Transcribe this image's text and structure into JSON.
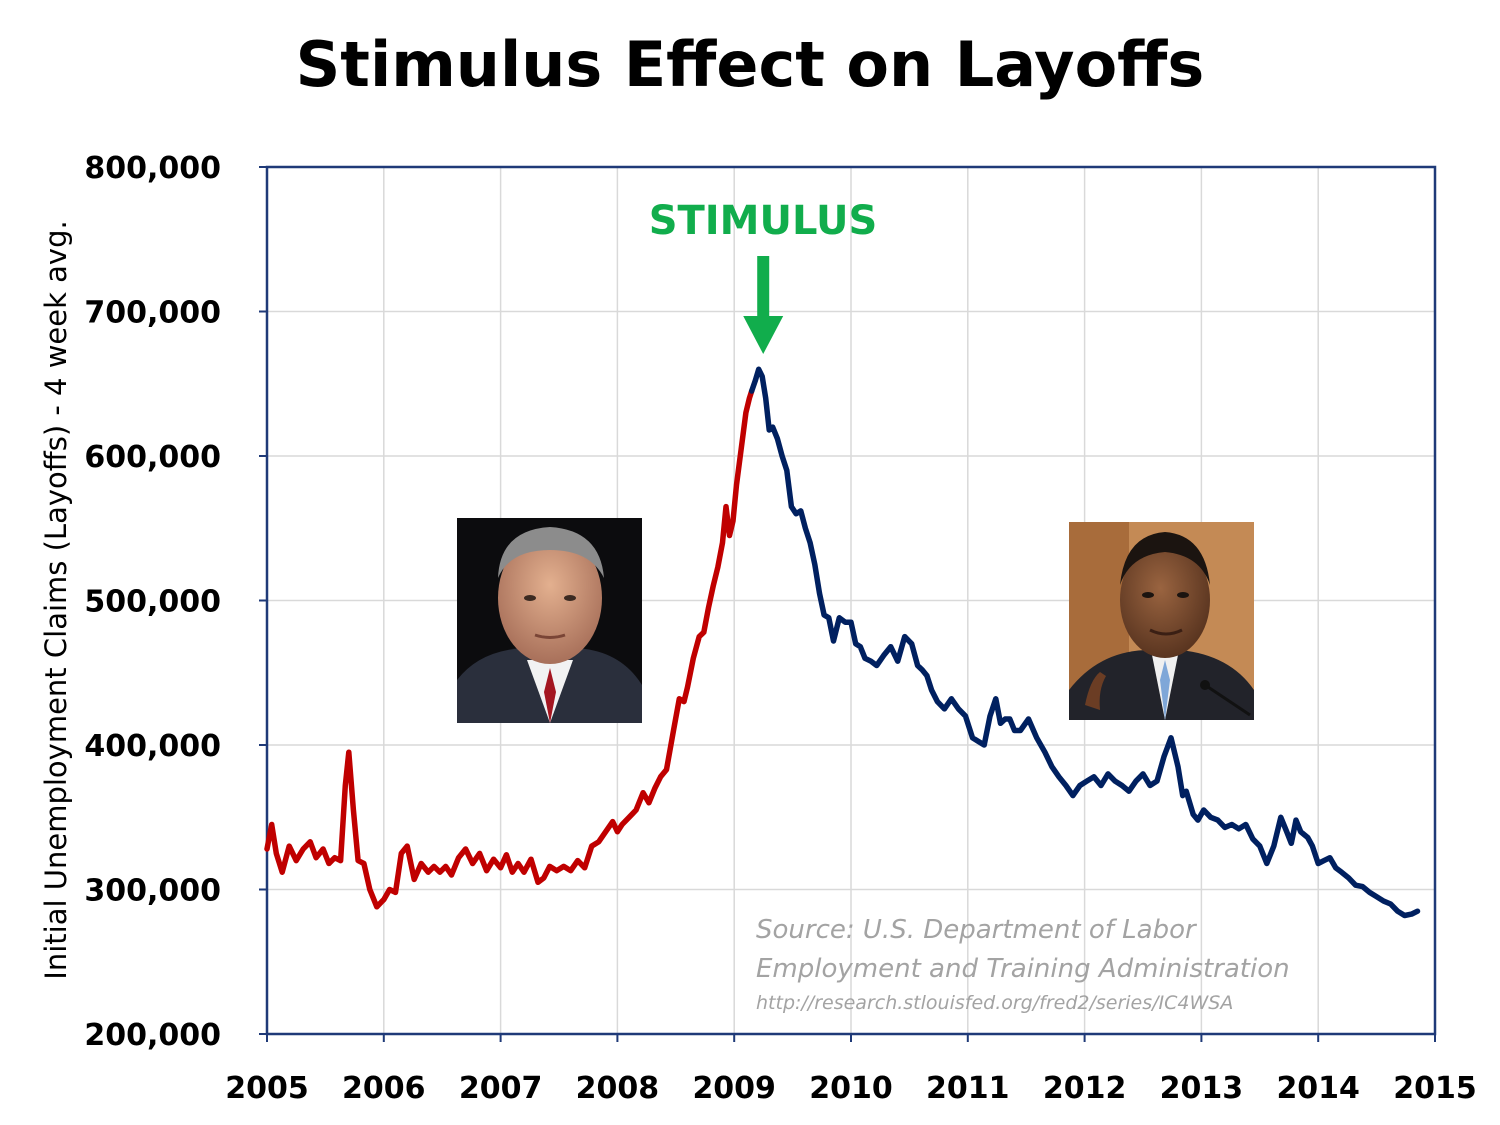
{
  "title": "Stimulus Effect on Layoffs",
  "colors": {
    "before": "#c00000",
    "after": "#002060",
    "stimulus": "#11ad4c",
    "frame": "#1f3a78",
    "grid": "#d9d9d9",
    "source": "#a3a3a3"
  },
  "stimulus_label": "STIMULUS",
  "stimulus_x": 2009.12,
  "source": {
    "line1": "Source: U.S. Department of Labor",
    "line2": "Employment and Training Administration",
    "line3": "http://research.stlouisfed.org/fred2/series/IC4WSA"
  },
  "photos": {
    "left": "portrait-bush",
    "right": "portrait-obama"
  },
  "chart_data": {
    "type": "line",
    "title": "Stimulus Effect on Layoffs",
    "xlabel": "",
    "ylabel": "Initial Unemployment Claims (Layoffs) - 4 week avg.",
    "xlim": [
      2005,
      2015
    ],
    "ylim": [
      200000,
      800000
    ],
    "x_ticks": [
      "2005",
      "2006",
      "2007",
      "2008",
      "2009",
      "2010",
      "2011",
      "2012",
      "2013",
      "2014",
      "2015"
    ],
    "y_ticks": [
      "200,000",
      "300,000",
      "400,000",
      "500,000",
      "600,000",
      "700,000",
      "800,000"
    ],
    "grid": true,
    "series": [
      {
        "key": "before",
        "x": [
          2005.0,
          2005.04,
          2005.08,
          2005.13,
          2005.19,
          2005.25,
          2005.31,
          2005.37,
          2005.42,
          2005.48,
          2005.53,
          2005.58,
          2005.63,
          2005.67,
          2005.7,
          2005.74,
          2005.78,
          2005.83,
          2005.88,
          2005.94,
          2006.0,
          2006.05,
          2006.1,
          2006.15,
          2006.2,
          2006.26,
          2006.32,
          2006.38,
          2006.43,
          2006.48,
          2006.53,
          2006.58,
          2006.64,
          2006.7,
          2006.76,
          2006.82,
          2006.88,
          2006.94,
          2007.0,
          2007.05,
          2007.1,
          2007.15,
          2007.2,
          2007.26,
          2007.32,
          2007.37,
          2007.42,
          2007.48,
          2007.54,
          2007.6,
          2007.66,
          2007.72,
          2007.78,
          2007.84,
          2007.9,
          2007.96,
          2008.0,
          2008.04,
          2008.1,
          2008.16,
          2008.22,
          2008.27,
          2008.32,
          2008.37,
          2008.42,
          2008.48,
          2008.53,
          2008.57,
          2008.6,
          2008.65,
          2008.7,
          2008.74,
          2008.78,
          2008.82,
          2008.86,
          2008.9,
          2008.93,
          2008.96,
          2008.99,
          2009.02,
          2009.06,
          2009.1,
          2009.13,
          2009.15
        ],
        "values": [
          328000,
          345000,
          325000,
          312000,
          330000,
          320000,
          328000,
          333000,
          322000,
          328000,
          318000,
          322000,
          320000,
          372000,
          395000,
          355000,
          320000,
          318000,
          300000,
          288000,
          293000,
          300000,
          298000,
          325000,
          330000,
          307000,
          318000,
          312000,
          316000,
          312000,
          316000,
          310000,
          322000,
          328000,
          318000,
          325000,
          313000,
          321000,
          315000,
          324000,
          312000,
          318000,
          312000,
          321000,
          305000,
          308000,
          316000,
          313000,
          316000,
          313000,
          320000,
          315000,
          330000,
          333000,
          340000,
          347000,
          340000,
          345000,
          350000,
          355000,
          367000,
          360000,
          370000,
          378000,
          383000,
          410000,
          432000,
          430000,
          440000,
          460000,
          475000,
          478000,
          495000,
          510000,
          523000,
          540000,
          565000,
          545000,
          555000,
          580000,
          605000,
          630000,
          640000,
          645000
        ]
      },
      {
        "key": "after",
        "x": [
          2009.15,
          2009.18,
          2009.21,
          2009.24,
          2009.27,
          2009.3,
          2009.33,
          2009.37,
          2009.41,
          2009.45,
          2009.49,
          2009.53,
          2009.57,
          2009.61,
          2009.65,
          2009.69,
          2009.73,
          2009.77,
          2009.81,
          2009.85,
          2009.9,
          2009.95,
          2010.0,
          2010.04,
          2010.08,
          2010.12,
          2010.17,
          2010.22,
          2010.28,
          2010.34,
          2010.4,
          2010.46,
          2010.52,
          2010.57,
          2010.61,
          2010.65,
          2010.69,
          2010.74,
          2010.8,
          2010.86,
          2010.92,
          2010.98,
          2011.04,
          2011.1,
          2011.14,
          2011.19,
          2011.24,
          2011.28,
          2011.32,
          2011.36,
          2011.4,
          2011.45,
          2011.52,
          2011.59,
          2011.66,
          2011.72,
          2011.78,
          2011.84,
          2011.9,
          2011.96,
          2012.02,
          2012.08,
          2012.14,
          2012.2,
          2012.26,
          2012.32,
          2012.38,
          2012.44,
          2012.5,
          2012.56,
          2012.62,
          2012.68,
          2012.74,
          2012.8,
          2012.84,
          2012.87,
          2012.9,
          2012.93,
          2012.97,
          2013.02,
          2013.08,
          2013.14,
          2013.2,
          2013.26,
          2013.32,
          2013.38,
          2013.44,
          2013.5,
          2013.56,
          2013.62,
          2013.68,
          2013.73,
          2013.77,
          2013.81,
          2013.85,
          2013.88,
          2013.91,
          2013.95,
          2014.0,
          2014.05,
          2014.1,
          2014.15,
          2014.2,
          2014.26,
          2014.32,
          2014.38,
          2014.44,
          2014.5,
          2014.56,
          2014.62,
          2014.68,
          2014.74,
          2014.8,
          2014.85
        ],
        "values": [
          645000,
          652000,
          660000,
          655000,
          640000,
          618000,
          620000,
          612000,
          600000,
          590000,
          565000,
          560000,
          562000,
          550000,
          540000,
          525000,
          505000,
          490000,
          488000,
          472000,
          488000,
          485000,
          485000,
          470000,
          468000,
          460000,
          458000,
          455000,
          462000,
          468000,
          458000,
          475000,
          470000,
          455000,
          452000,
          448000,
          438000,
          430000,
          425000,
          432000,
          425000,
          420000,
          405000,
          402000,
          400000,
          420000,
          432000,
          415000,
          418000,
          418000,
          410000,
          410000,
          418000,
          405000,
          395000,
          385000,
          378000,
          372000,
          365000,
          372000,
          375000,
          378000,
          372000,
          380000,
          375000,
          372000,
          368000,
          375000,
          380000,
          372000,
          375000,
          392000,
          405000,
          385000,
          365000,
          368000,
          360000,
          352000,
          348000,
          355000,
          350000,
          348000,
          343000,
          345000,
          342000,
          345000,
          335000,
          330000,
          318000,
          330000,
          350000,
          340000,
          332000,
          348000,
          340000,
          338000,
          336000,
          330000,
          318000,
          320000,
          322000,
          315000,
          312000,
          308000,
          303000,
          302000,
          298000,
          295000,
          292000,
          290000,
          285000,
          282000,
          283000,
          285000
        ]
      }
    ]
  }
}
